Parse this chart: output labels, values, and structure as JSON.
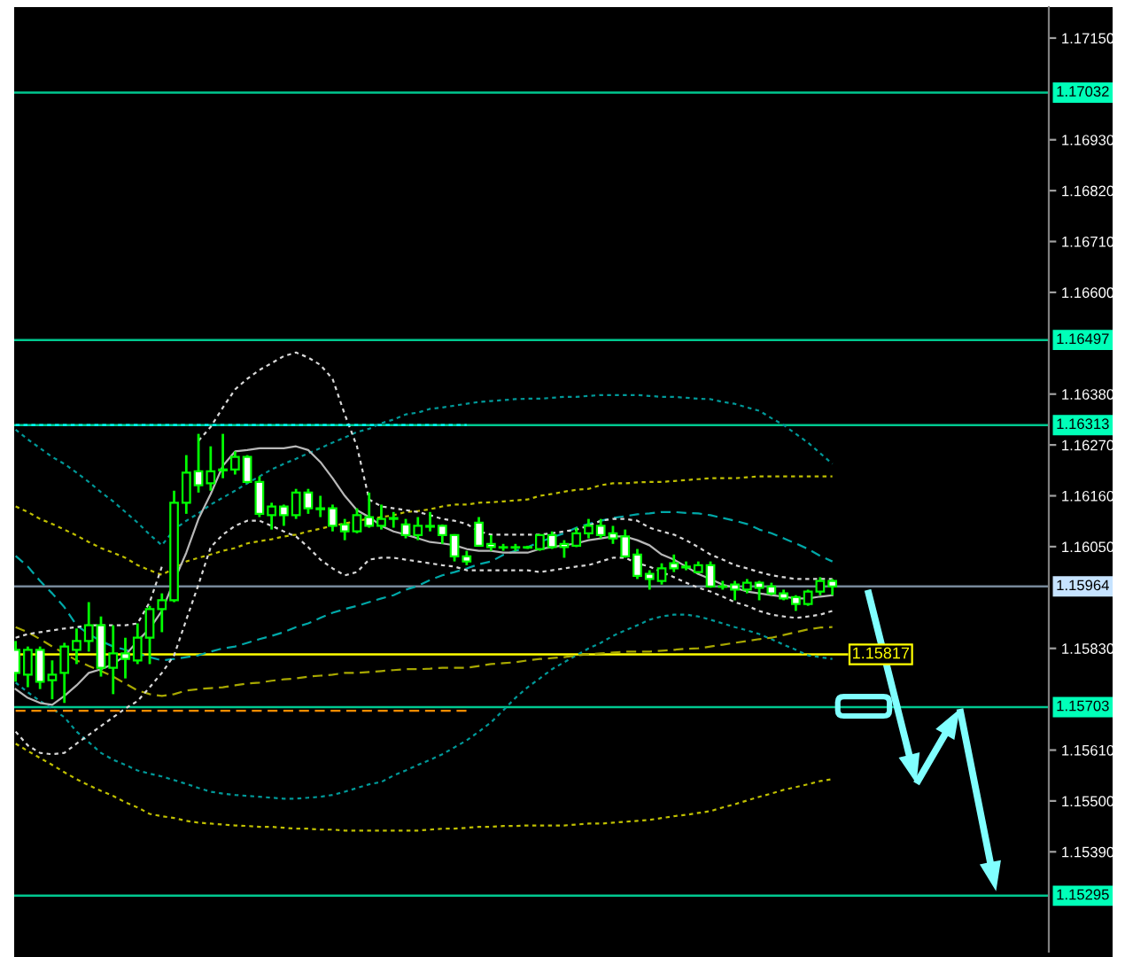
{
  "chart_data": {
    "type": "candlestick",
    "categories": [
      null,
      null,
      null,
      null,
      null,
      null,
      null,
      null,
      null,
      null,
      null,
      null,
      null,
      null,
      null,
      null,
      null,
      null,
      null,
      null,
      null,
      null,
      null,
      null,
      null,
      null,
      null,
      null,
      null,
      null,
      null,
      null,
      null,
      null,
      null,
      null,
      null,
      null,
      null,
      null,
      null,
      null,
      null,
      null,
      null,
      null,
      null,
      null,
      null,
      null,
      null,
      null,
      null,
      null,
      null,
      null,
      null,
      null,
      null,
      null,
      null,
      null,
      null,
      null,
      null,
      null,
      null,
      null
    ],
    "ohlc": [
      [
        1.15827,
        1.15846,
        1.15758,
        1.15777
      ],
      [
        1.15773,
        1.15834,
        1.15746,
        1.15827
      ],
      [
        1.15827,
        1.15834,
        1.15742,
        1.15758
      ],
      [
        1.15761,
        1.15804,
        1.1572,
        1.15773
      ],
      [
        1.15777,
        1.15842,
        1.15712,
        1.15834
      ],
      [
        1.15827,
        1.15873,
        1.15796,
        1.15846
      ],
      [
        1.15846,
        1.1593,
        1.15823,
        1.1588
      ],
      [
        1.1588,
        1.15899,
        1.15769,
        1.15788
      ],
      [
        1.15788,
        1.1588,
        1.15731,
        1.15819
      ],
      [
        1.15819,
        1.15853,
        1.15765,
        1.15807
      ],
      [
        1.15804,
        1.15884,
        1.15796,
        1.15853
      ],
      [
        1.15853,
        1.15922,
        1.15796,
        1.15915
      ],
      [
        1.15915,
        1.15949,
        1.15865,
        1.15934
      ],
      [
        1.15934,
        1.16171,
        1.1593,
        1.16145
      ],
      [
        1.16145,
        1.16248,
        1.16121,
        1.1621
      ],
      [
        1.16213,
        1.16294,
        1.16167,
        1.16183
      ],
      [
        1.16187,
        1.16267,
        1.16171,
        1.16213
      ],
      [
        1.16215,
        1.16294,
        1.16198,
        1.16217
      ],
      [
        1.16217,
        1.16256,
        1.16206,
        1.16244
      ],
      [
        1.16244,
        1.16248,
        1.16187,
        1.1619
      ],
      [
        1.1619,
        1.16202,
        1.16114,
        1.16121
      ],
      [
        1.16118,
        1.16145,
        1.16087,
        1.16137
      ],
      [
        1.16137,
        1.16141,
        1.16095,
        1.16118
      ],
      [
        1.16118,
        1.16175,
        1.1611,
        1.16167
      ],
      [
        1.16167,
        1.16175,
        1.16121,
        1.16133
      ],
      [
        1.16133,
        1.1616,
        1.16114,
        1.16131
      ],
      [
        1.16133,
        1.16141,
        1.16083,
        1.16095
      ],
      [
        1.16098,
        1.1611,
        1.16064,
        1.16083
      ],
      [
        1.16083,
        1.16133,
        1.16079,
        1.16118
      ],
      [
        1.16114,
        1.16167,
        1.16091,
        1.16095
      ],
      [
        1.16095,
        1.16141,
        1.16087,
        1.1611
      ],
      [
        1.1611,
        1.16125,
        1.16091,
        1.16112
      ],
      [
        1.16098,
        1.1611,
        1.16068,
        1.16075
      ],
      [
        1.16075,
        1.16114,
        1.16064,
        1.16095
      ],
      [
        1.16095,
        1.16125,
        1.16083,
        1.16093
      ],
      [
        1.16095,
        1.16098,
        1.16056,
        1.16075
      ],
      [
        1.16075,
        1.16077,
        1.16018,
        1.16029
      ],
      [
        1.16029,
        1.16041,
        1.1601,
        1.16018
      ],
      [
        1.16102,
        1.16114,
        1.1605,
        1.16052
      ],
      [
        1.16056,
        1.16075,
        1.16041,
        1.16049
      ],
      [
        1.16049,
        1.16056,
        1.16041,
        1.16048
      ],
      [
        1.16048,
        1.16056,
        1.16041,
        1.16049
      ],
      [
        1.16049,
        1.16052,
        1.16045,
        1.16048
      ],
      [
        1.16045,
        1.16077,
        1.16041,
        1.16075
      ],
      [
        1.16075,
        1.16083,
        1.16045,
        1.16049
      ],
      [
        1.16056,
        1.16064,
        1.16026,
        1.16049
      ],
      [
        1.16052,
        1.16091,
        1.16049,
        1.16079
      ],
      [
        1.16079,
        1.1611,
        1.16068,
        1.16095
      ],
      [
        1.16095,
        1.1611,
        1.16068,
        1.16075
      ],
      [
        1.16079,
        1.16095,
        1.16056,
        1.16068
      ],
      [
        1.16072,
        1.16087,
        1.16026,
        1.16029
      ],
      [
        1.16033,
        1.16045,
        1.1598,
        1.15987
      ],
      [
        1.15991,
        1.15999,
        1.15957,
        1.1598
      ],
      [
        1.15976,
        1.16014,
        1.15968,
        1.16003
      ],
      [
        1.16014,
        1.16033,
        1.15995,
        1.16003
      ],
      [
        1.16007,
        1.16018,
        1.15999,
        1.16005
      ],
      [
        1.15995,
        1.16018,
        1.15993,
        1.1601
      ],
      [
        1.1601,
        1.16018,
        1.15961,
        1.15964
      ],
      [
        1.15964,
        1.15976,
        1.15957,
        1.15963
      ],
      [
        1.15968,
        1.15976,
        1.15934,
        1.15957
      ],
      [
        1.15957,
        1.1598,
        1.15949,
        1.15972
      ],
      [
        1.15972,
        1.15976,
        1.15934,
        1.15961
      ],
      [
        1.15964,
        1.15972,
        1.15945,
        1.15949
      ],
      [
        1.15949,
        1.15957,
        1.15934,
        1.15938
      ],
      [
        1.15941,
        1.15945,
        1.15911,
        1.15926
      ],
      [
        1.15926,
        1.15957,
        1.15922,
        1.15953
      ],
      [
        1.15953,
        1.15984,
        1.15945,
        1.15976
      ],
      [
        1.15976,
        1.1598,
        1.15945,
        1.15964
      ]
    ],
    "color": "#00ff00",
    "colors": [
      "#ffffff",
      "#000000",
      "#ffffff",
      "#000000",
      "#000000",
      "#000000",
      "#000000",
      "#ffffff",
      "#000000",
      "#ffffff",
      "#000000",
      "#000000",
      "#000000",
      "#000000",
      "#000000",
      "#ffffff",
      "#000000",
      "#000000",
      "#000000",
      "#ffffff",
      "#ffffff",
      "#000000",
      "#ffffff",
      "#000000",
      "#ffffff",
      "#ffffff",
      "#ffffff",
      "#ffffff",
      "#000000",
      "#ffffff",
      "#000000",
      "#000000",
      "#ffffff",
      "#000000",
      "#ffffff",
      "#ffffff",
      "#ffffff",
      "#ffffff",
      "#ffffff",
      "#ffffff",
      "#ffffff",
      "#000000",
      "#ffffff",
      "#000000",
      "#ffffff",
      "#ffffff",
      "#000000",
      "#000000",
      "#ffffff",
      "#ffffff",
      "#ffffff",
      "#ffffff",
      "#ffffff",
      "#000000",
      "#ffffff",
      "#ffffff",
      "#000000",
      "#ffffff",
      "#ffffff",
      "#ffffff",
      "#000000",
      "#ffffff",
      "#ffffff",
      "#ffffff",
      "#ffffff",
      "#000000",
      "#000000",
      "#ffffff"
    ],
    "series": [
      {
        "type": "line",
        "color": "#009999",
        "line_style": "dotted",
        "values": [
          1.16303,
          1.16282,
          1.16263,
          1.16244,
          1.16229,
          1.1621,
          1.1619,
          1.16168,
          1.16148,
          1.16125,
          1.16102,
          1.16076,
          1.16053,
          1.16087,
          1.16106,
          1.16122,
          1.16141,
          1.16156,
          1.16171,
          1.16187,
          1.16202,
          1.16217,
          1.16229,
          1.1624,
          1.16252,
          1.16263,
          1.16275,
          1.16286,
          1.16298,
          1.16305,
          1.16317,
          1.16325,
          1.16336,
          1.1634,
          1.16348,
          1.16351,
          1.16355,
          1.16359,
          1.16363,
          1.16365,
          1.16367,
          1.16369,
          1.1637,
          1.1637,
          1.16372,
          1.16374,
          1.16374,
          1.16376,
          1.16378,
          1.16378,
          1.16378,
          1.16378,
          1.16376,
          1.16374,
          1.16374,
          1.16372,
          1.1637,
          1.16369,
          1.16363,
          1.16359,
          1.16351,
          1.16344,
          1.16328,
          1.16313,
          1.16294,
          1.16275,
          1.16252,
          1.16229
        ]
      },
      {
        "type": "line",
        "color": "#009999",
        "line_style": "dotted",
        "values": [
          1.15756,
          1.15735,
          1.15716,
          1.157,
          1.15681,
          1.1565,
          1.15627,
          1.15604,
          1.15589,
          1.15578,
          1.15566,
          1.15559,
          1.15553,
          1.15545,
          1.15537,
          1.15528,
          1.1552,
          1.15516,
          1.15513,
          1.15511,
          1.15509,
          1.15507,
          1.15505,
          1.15505,
          1.15507,
          1.15509,
          1.15513,
          1.1552,
          1.15528,
          1.15536,
          1.15541,
          1.15555,
          1.15566,
          1.15578,
          1.15589,
          1.15601,
          1.15616,
          1.15631,
          1.1565,
          1.1567,
          1.15696,
          1.15723,
          1.15746,
          1.15765,
          1.15785,
          1.158,
          1.15815,
          1.1583,
          1.15842,
          1.15857,
          1.15869,
          1.1588,
          1.15892,
          1.15899,
          1.15903,
          1.15903,
          1.15899,
          1.15892,
          1.15884,
          1.15876,
          1.15869,
          1.15861,
          1.1585,
          1.15838,
          1.15827,
          1.15815,
          1.15811,
          1.15807
        ]
      },
      {
        "type": "line",
        "color": "#00a8a8",
        "line_style": "dashed",
        "values": [
          1.1603,
          1.16007,
          1.15976,
          1.15949,
          1.15919,
          1.1588,
          1.15861,
          1.15846,
          1.15834,
          1.15827,
          1.15819,
          1.15811,
          1.15804,
          1.15807,
          1.15811,
          1.15815,
          1.15823,
          1.1583,
          1.15834,
          1.15842,
          1.1585,
          1.15857,
          1.15865,
          1.15876,
          1.15884,
          1.15896,
          1.15907,
          1.15915,
          1.15922,
          1.1593,
          1.15938,
          1.15945,
          1.15957,
          1.15965,
          1.15978,
          1.15988,
          1.15995,
          1.16003,
          1.16012,
          1.16018,
          1.16032,
          1.16041,
          1.16049,
          1.1606,
          1.1607,
          1.16079,
          1.16091,
          1.16099,
          1.16106,
          1.16112,
          1.16116,
          1.1612,
          1.16122,
          1.16125,
          1.16125,
          1.16123,
          1.16122,
          1.16118,
          1.16112,
          1.16106,
          1.16099,
          1.16087,
          1.16079,
          1.16068,
          1.16057,
          1.16045,
          1.1603,
          1.16018
        ]
      },
      {
        "type": "line",
        "color": "#c0c000",
        "line_style": "dotted",
        "values": [
          1.16137,
          1.16125,
          1.1611,
          1.16099,
          1.16087,
          1.16074,
          1.1606,
          1.16047,
          1.16037,
          1.16026,
          1.1601,
          1.15999,
          1.15989,
          1.16003,
          1.16018,
          1.16026,
          1.16033,
          1.16041,
          1.16047,
          1.16057,
          1.16062,
          1.16066,
          1.16072,
          1.16076,
          1.16083,
          1.16089,
          1.16095,
          1.161,
          1.16106,
          1.1611,
          1.16114,
          1.16118,
          1.16125,
          1.16127,
          1.16131,
          1.16137,
          1.16141,
          1.16141,
          1.16145,
          1.16146,
          1.16148,
          1.1615,
          1.16152,
          1.1616,
          1.16164,
          1.16169,
          1.16173,
          1.16175,
          1.16183,
          1.16187,
          1.16187,
          1.16189,
          1.1619,
          1.1619,
          1.16192,
          1.16194,
          1.16196,
          1.16198,
          1.16198,
          1.16198,
          1.162,
          1.16202,
          1.16202,
          1.16202,
          1.16202,
          1.16202,
          1.16202,
          1.16202
        ]
      },
      {
        "type": "line",
        "color": "#c0c000",
        "line_style": "dotted",
        "values": [
          1.15624,
          1.15608,
          1.15593,
          1.15578,
          1.15562,
          1.15547,
          1.15534,
          1.15522,
          1.15511,
          1.15497,
          1.15486,
          1.15472,
          1.15467,
          1.15463,
          1.15457,
          1.15453,
          1.15451,
          1.15449,
          1.15447,
          1.15446,
          1.15444,
          1.15444,
          1.15442,
          1.1544,
          1.1544,
          1.15438,
          1.15438,
          1.15436,
          1.15436,
          1.15436,
          1.15436,
          1.15436,
          1.15436,
          1.15436,
          1.15438,
          1.1544,
          1.1544,
          1.15442,
          1.15444,
          1.15444,
          1.15446,
          1.15446,
          1.15447,
          1.15447,
          1.15447,
          1.15447,
          1.15449,
          1.15451,
          1.15451,
          1.15453,
          1.15455,
          1.15457,
          1.15459,
          1.15463,
          1.15467,
          1.1547,
          1.15474,
          1.15478,
          1.15486,
          1.15493,
          1.15501,
          1.15509,
          1.15516,
          1.15524,
          1.1553,
          1.15536,
          1.15543,
          1.15547
        ]
      },
      {
        "type": "line",
        "color": "#a8a800",
        "line_style": "dashed",
        "values": [
          1.15876,
          1.15865,
          1.1585,
          1.15834,
          1.15819,
          1.15804,
          1.15792,
          1.15781,
          1.15769,
          1.15754,
          1.15739,
          1.15731,
          1.15727,
          1.15731,
          1.15739,
          1.15742,
          1.15744,
          1.15746,
          1.1575,
          1.15754,
          1.15756,
          1.1576,
          1.15763,
          1.15765,
          1.15769,
          1.15771,
          1.15773,
          1.15777,
          1.15777,
          1.15779,
          1.15781,
          1.15783,
          1.15785,
          1.15785,
          1.15786,
          1.15788,
          1.15788,
          1.15788,
          1.15792,
          1.15796,
          1.15798,
          1.158,
          1.15804,
          1.15807,
          1.15809,
          1.15811,
          1.15815,
          1.15817,
          1.15819,
          1.15821,
          1.15823,
          1.15823,
          1.15823,
          1.15825,
          1.15827,
          1.15829,
          1.1583,
          1.15834,
          1.15838,
          1.15842,
          1.15846,
          1.1585,
          1.15853,
          1.15859,
          1.15865,
          1.15871,
          1.15875,
          1.15876
        ]
      },
      {
        "type": "line",
        "color": "#d8d8d8",
        "line_style": "dotted",
        "values": [
          1.15853,
          1.15861,
          1.15865,
          1.15869,
          1.15873,
          1.15876,
          1.1588,
          1.1588,
          1.1588,
          1.1588,
          1.15884,
          1.1593,
          1.16007,
          null,
          null,
          1.16279,
          1.16309,
          1.16351,
          1.1639,
          1.16413,
          1.16432,
          1.16447,
          1.16462,
          1.1647,
          1.16459,
          1.16443,
          1.16413,
          1.16336,
          1.16267,
          1.16152,
          1.16137,
          1.16133,
          1.16129,
          1.16125,
          1.16118,
          1.1611,
          1.16106,
          1.16099,
          1.16083,
          1.16076,
          1.16076,
          1.16076,
          1.16076,
          1.16076,
          1.16079,
          1.16083,
          1.16087,
          1.16095,
          1.16106,
          1.1611,
          1.1611,
          1.16106,
          1.16091,
          1.16083,
          1.16076,
          1.16064,
          1.16049,
          1.16033,
          1.16022,
          1.1601,
          1.16003,
          1.15995,
          1.15988,
          1.15984,
          1.1598,
          1.1598,
          1.1598,
          1.1598
        ]
      },
      {
        "type": "line",
        "color": "#d8d8d8",
        "line_style": "dotted",
        "values": [
          1.1565,
          1.1562,
          1.15604,
          1.15601,
          1.15604,
          1.15624,
          1.15643,
          1.15662,
          1.15681,
          1.157,
          1.15716,
          1.15746,
          1.15777,
          1.15815,
          1.15892,
          1.15968,
          1.16049,
          1.16076,
          1.16095,
          1.16106,
          1.16106,
          1.16095,
          1.16083,
          1.16072,
          1.16049,
          1.16022,
          1.16003,
          1.15988,
          1.15995,
          1.16022,
          1.16026,
          1.16026,
          1.16022,
          1.16018,
          1.16014,
          1.1601,
          1.16007,
          1.15999,
          1.15999,
          1.15999,
          1.15999,
          1.15999,
          1.15999,
          1.15995,
          1.15999,
          1.16003,
          1.16007,
          1.1601,
          1.16018,
          1.16026,
          1.16026,
          1.16014,
          1.16007,
          1.15995,
          1.15984,
          1.15972,
          1.15961,
          1.15953,
          1.15942,
          1.1593,
          1.15922,
          1.15911,
          1.15903,
          1.15899,
          1.15896,
          1.15899,
          1.15903,
          1.15911
        ]
      },
      {
        "type": "line",
        "color": "#b8b8b8",
        "line_style": "solid",
        "values": [
          1.15742,
          1.15723,
          1.15712,
          1.15708,
          1.15727,
          1.1575,
          1.15777,
          1.15785,
          1.15796,
          1.15815,
          1.15846,
          1.15873,
          1.15911,
          1.15976,
          1.16037,
          1.1611,
          1.16164,
          1.16225,
          1.16256,
          1.16259,
          1.16263,
          1.16263,
          1.16263,
          1.16267,
          1.16259,
          1.16233,
          1.16198,
          1.1616,
          1.16129,
          1.16114,
          1.16095,
          1.16083,
          1.16076,
          1.16068,
          1.1606,
          1.16057,
          1.16053,
          1.16045,
          1.16041,
          1.16041,
          1.16037,
          1.16037,
          1.16037,
          1.16045,
          1.16049,
          1.16053,
          1.16057,
          1.16064,
          1.16068,
          1.16072,
          1.16072,
          1.16064,
          1.16053,
          1.16033,
          1.16022,
          1.16007,
          1.15991,
          1.1598,
          1.15968,
          1.15961,
          1.15953,
          1.15949,
          1.15945,
          1.15942,
          1.15938,
          1.15938,
          1.15942,
          1.15945
        ]
      },
      {
        "type": "line",
        "color": "#ff8c00",
        "line_style": "dashed",
        "values": [
          1.15695,
          1.15695,
          1.15695,
          1.15695,
          1.15695,
          1.15695,
          1.15695,
          1.15695,
          1.15695,
          1.15695,
          1.15695,
          1.15695,
          1.15695,
          1.15695,
          1.15695,
          1.15695,
          1.15695,
          1.15695,
          1.15695,
          1.15695,
          1.15695,
          1.15695,
          1.15695,
          1.15695,
          1.15695,
          1.15695,
          1.15695,
          1.15695,
          1.15695,
          1.15695,
          1.15695,
          1.15695,
          1.15695,
          1.15695,
          1.15695,
          1.15695,
          1.15695,
          1.15695,
          null,
          null,
          null,
          null,
          null,
          null,
          null,
          null,
          null,
          null,
          null,
          null,
          null,
          null,
          null,
          null,
          null,
          null,
          null,
          null,
          null,
          null,
          null,
          null,
          null,
          null,
          null,
          null,
          null,
          null
        ]
      },
      {
        "type": "line",
        "color": "#00ffff",
        "line_style": "dotted",
        "values": [
          1.16313,
          1.16313,
          1.16313,
          1.16313,
          1.16313,
          1.16313,
          1.16313,
          1.16313,
          1.16313,
          1.16313,
          1.16313,
          1.16313,
          1.16313,
          1.16313,
          1.16313,
          1.16313,
          1.16313,
          1.16313,
          1.16313,
          1.16313,
          1.16313,
          1.16313,
          1.16313,
          1.16313,
          1.16313,
          1.16313,
          1.16313,
          1.16313,
          1.16313,
          1.16313,
          1.16313,
          1.16313,
          1.16313,
          1.16313,
          1.16313,
          1.16313,
          1.16313,
          1.16313,
          null,
          null,
          null,
          null,
          null,
          null,
          null,
          null,
          null,
          null,
          null,
          null,
          null,
          null,
          null,
          null,
          null,
          null,
          null,
          null,
          null,
          null,
          null,
          null,
          null,
          null,
          null,
          null,
          null,
          null
        ]
      }
    ],
    "ylim": [
      1.15174,
      1.17217
    ],
    "yticks": [
      {
        "value": 1.1715,
        "label": "1.17150"
      },
      {
        "value": 1.1693,
        "label": "1.16930"
      },
      {
        "value": 1.1682,
        "label": "1.16820"
      },
      {
        "value": 1.1671,
        "label": "1.16710"
      },
      {
        "value": 1.166,
        "label": "1.16600"
      },
      {
        "value": 1.1638,
        "label": "1.16380"
      },
      {
        "value": 1.1627,
        "label": "1.16270"
      },
      {
        "value": 1.1616,
        "label": "1.16160"
      },
      {
        "value": 1.1605,
        "label": "1.16050"
      },
      {
        "value": 1.1583,
        "label": "1.15830"
      },
      {
        "value": 1.1561,
        "label": "1.15610"
      },
      {
        "value": 1.155,
        "label": "1.15500"
      },
      {
        "value": 1.1539,
        "label": "1.15390"
      }
    ],
    "ref_lines": [
      {
        "axis": "y",
        "value": 1.17032,
        "label": "1.17032",
        "color": "#00c890"
      },
      {
        "axis": "y",
        "value": 1.16497,
        "label": "1.16497",
        "color": "#00c890"
      },
      {
        "axis": "y",
        "value": 1.16313,
        "label": "1.16313",
        "color": "#00c890"
      },
      {
        "axis": "y",
        "value": 1.15964,
        "label": "1.15964",
        "color": "#778899"
      },
      {
        "axis": "y",
        "value": 1.15817,
        "color": "#ffff00"
      },
      {
        "axis": "y",
        "value": 1.15703,
        "label": "1.15703",
        "color": "#00c890"
      },
      {
        "axis": "y",
        "value": 1.15295,
        "label": "1.15295",
        "color": "#00c890"
      }
    ],
    "annotations": [
      "1.15817"
    ],
    "tick_labels": "y"
  }
}
